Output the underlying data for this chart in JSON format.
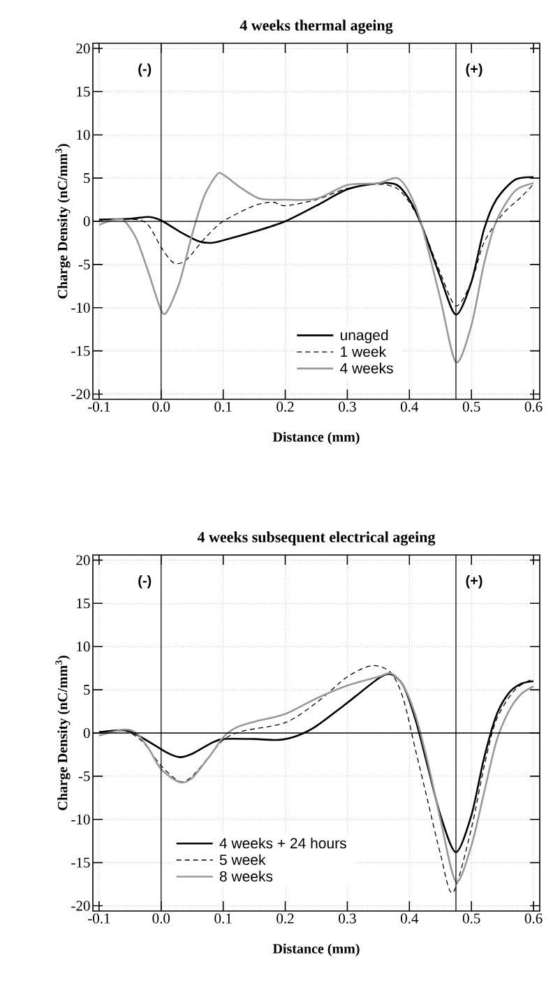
{
  "chart_data": [
    {
      "type": "line",
      "title": "4 weeks thermal ageing",
      "xlabel": "Distance (mm)",
      "ylabel": "Charge Density (nC/mm$^{3}$)",
      "xlim": [
        -0.11,
        0.61
      ],
      "ylim": [
        -20.6,
        20.6
      ],
      "xticks": [
        {
          "value": -0.1,
          "label": "-0.1"
        },
        {
          "value": 0,
          "label": "0.0"
        },
        {
          "value": 0.1,
          "label": "0.1"
        },
        {
          "value": 0.2,
          "label": "0.2"
        },
        {
          "value": 0.3,
          "label": "0.3"
        },
        {
          "value": 0.4,
          "label": "0.4"
        },
        {
          "value": 0.5,
          "label": "0.5"
        },
        {
          "value": 0.6,
          "label": "0.6"
        }
      ],
      "yticks": [
        -20,
        -15,
        -10,
        -5,
        0,
        5,
        10,
        15,
        20
      ],
      "grid": true,
      "legend": "bottom",
      "ref_lines": [
        {
          "axis": "x",
          "value": 0,
          "label": "(-)"
        },
        {
          "axis": "x",
          "value": 0.475,
          "label": "(+)"
        }
      ],
      "series": [
        {
          "name": "unaged",
          "color": "#000000",
          "line_style": "solid",
          "x": [
            -0.1,
            -0.05,
            -0.02,
            0,
            0.03,
            0.06,
            0.08,
            0.1,
            0.15,
            0.2,
            0.25,
            0.3,
            0.35,
            0.38,
            0.4,
            0.42,
            0.45,
            0.475,
            0.5,
            0.52,
            0.54,
            0.57,
            0.6
          ],
          "values": [
            0.2,
            0.3,
            0.5,
            0.1,
            -1.2,
            -2.3,
            -2.5,
            -2.2,
            -1.2,
            0,
            1.8,
            3.7,
            4.4,
            4.2,
            2.5,
            -0.5,
            -6.5,
            -10.8,
            -7,
            -1,
            2.5,
            4.8,
            5.1
          ]
        },
        {
          "name": "1 week",
          "color": "#000000",
          "line_style": "dashed",
          "x": [
            -0.1,
            -0.04,
            -0.02,
            0,
            0.02,
            0.04,
            0.07,
            0.1,
            0.15,
            0.18,
            0.2,
            0.25,
            0.3,
            0.35,
            0.38,
            0.4,
            0.42,
            0.45,
            0.475,
            0.5,
            0.52,
            0.55,
            0.58,
            0.6
          ],
          "values": [
            0.2,
            0.2,
            -0.5,
            -3,
            -4.8,
            -4.5,
            -2,
            0,
            1.8,
            2.2,
            1.8,
            2.5,
            3.8,
            4.3,
            3.8,
            2.2,
            -0.5,
            -6,
            -9.8,
            -7,
            -2.5,
            0.8,
            2.8,
            4.3
          ]
        },
        {
          "name": "4 weeks",
          "color": "#999999",
          "line_style": "solid",
          "x": [
            -0.1,
            -0.075,
            -0.06,
            -0.04,
            -0.02,
            0,
            0.01,
            0.03,
            0.05,
            0.07,
            0.09,
            0.1,
            0.13,
            0.16,
            0.2,
            0.25,
            0.3,
            0.35,
            0.38,
            0.4,
            0.42,
            0.45,
            0.475,
            0.5,
            0.52,
            0.54,
            0.57,
            0.6
          ],
          "values": [
            -0.4,
            0.2,
            0.1,
            -2,
            -6,
            -10.3,
            -10.4,
            -7,
            -1.5,
            3,
            5.4,
            5.4,
            3.8,
            2.6,
            2.5,
            2.6,
            4.2,
            4.4,
            5,
            3.3,
            -0.5,
            -9,
            -16.3,
            -12,
            -5,
            0,
            3.5,
            4.4
          ]
        }
      ]
    },
    {
      "type": "line",
      "title": "4 weeks subsequent electrical ageing",
      "xlabel": "Distance (mm)",
      "ylabel": "Charge Density (nC/mm$^{3}$)",
      "xlim": [
        -0.11,
        0.61
      ],
      "ylim": [
        -20.6,
        20.6
      ],
      "xticks": [
        {
          "value": -0.1,
          "label": "-0.1"
        },
        {
          "value": 0,
          "label": "0.0"
        },
        {
          "value": 0.1,
          "label": "0.1"
        },
        {
          "value": 0.2,
          "label": "0.2"
        },
        {
          "value": 0.3,
          "label": "0.3"
        },
        {
          "value": 0.4,
          "label": "0.4"
        },
        {
          "value": 0.5,
          "label": "0.5"
        },
        {
          "value": 0.6,
          "label": "0.6"
        }
      ],
      "yticks": [
        -20,
        -15,
        -10,
        -5,
        0,
        5,
        10,
        15,
        20
      ],
      "grid": true,
      "legend": "bottom left",
      "ref_lines": [
        {
          "axis": "x",
          "value": 0,
          "label": "(-)"
        },
        {
          "axis": "x",
          "value": 0.475,
          "label": "(+)"
        }
      ],
      "series": [
        {
          "name": "4 weeks + 24 hours",
          "color": "#000000",
          "line_style": "solid",
          "x": [
            -0.1,
            -0.07,
            -0.05,
            -0.02,
            0.01,
            0.03,
            0.05,
            0.08,
            0.1,
            0.15,
            0.19,
            0.22,
            0.25,
            0.3,
            0.35,
            0.37,
            0.39,
            0.41,
            0.43,
            0.45,
            0.475,
            0.5,
            0.52,
            0.54,
            0.56,
            0.58,
            0.6
          ],
          "values": [
            0.1,
            0.3,
            0.2,
            -1,
            -2.3,
            -2.8,
            -2.4,
            -1.2,
            -0.7,
            -0.7,
            -0.8,
            -0.3,
            0.8,
            3.5,
            6.3,
            6.8,
            5.5,
            1.5,
            -4,
            -9.5,
            -13.8,
            -9.5,
            -3,
            2,
            4.6,
            5.7,
            6
          ]
        },
        {
          "name": "5 week",
          "color": "#000000",
          "line_style": "dashed",
          "x": [
            -0.1,
            -0.06,
            -0.03,
            0,
            0.03,
            0.05,
            0.08,
            0.1,
            0.13,
            0.2,
            0.25,
            0.3,
            0.34,
            0.37,
            0.39,
            0.41,
            0.43,
            0.45,
            0.47,
            0.5,
            0.52,
            0.54,
            0.57,
            0.6
          ],
          "values": [
            0.1,
            0.3,
            -1,
            -3.8,
            -5.6,
            -5,
            -2.5,
            -0.8,
            0.2,
            1.2,
            3.5,
            6.5,
            7.8,
            7,
            4,
            -2,
            -8,
            -14,
            -18.5,
            -11,
            -4,
            1.5,
            5,
            6.3
          ]
        },
        {
          "name": "8 weeks",
          "color": "#999999",
          "line_style": "solid",
          "x": [
            -0.1,
            -0.06,
            -0.04,
            -0.02,
            0,
            0.03,
            0.05,
            0.08,
            0.1,
            0.12,
            0.15,
            0.2,
            0.25,
            0.3,
            0.35,
            0.37,
            0.39,
            0.41,
            0.43,
            0.45,
            0.475,
            0.5,
            0.52,
            0.54,
            0.56,
            0.58,
            0.6
          ],
          "values": [
            -0.3,
            0.4,
            0,
            -1.8,
            -4.2,
            -5.7,
            -5.2,
            -2.5,
            -0.5,
            0.6,
            1.3,
            2.2,
            4,
            5.5,
            6.5,
            6.9,
            5.5,
            2,
            -3.5,
            -10,
            -17.2,
            -13,
            -7,
            -1,
            2.5,
            4.5,
            5.4
          ]
        }
      ]
    }
  ]
}
